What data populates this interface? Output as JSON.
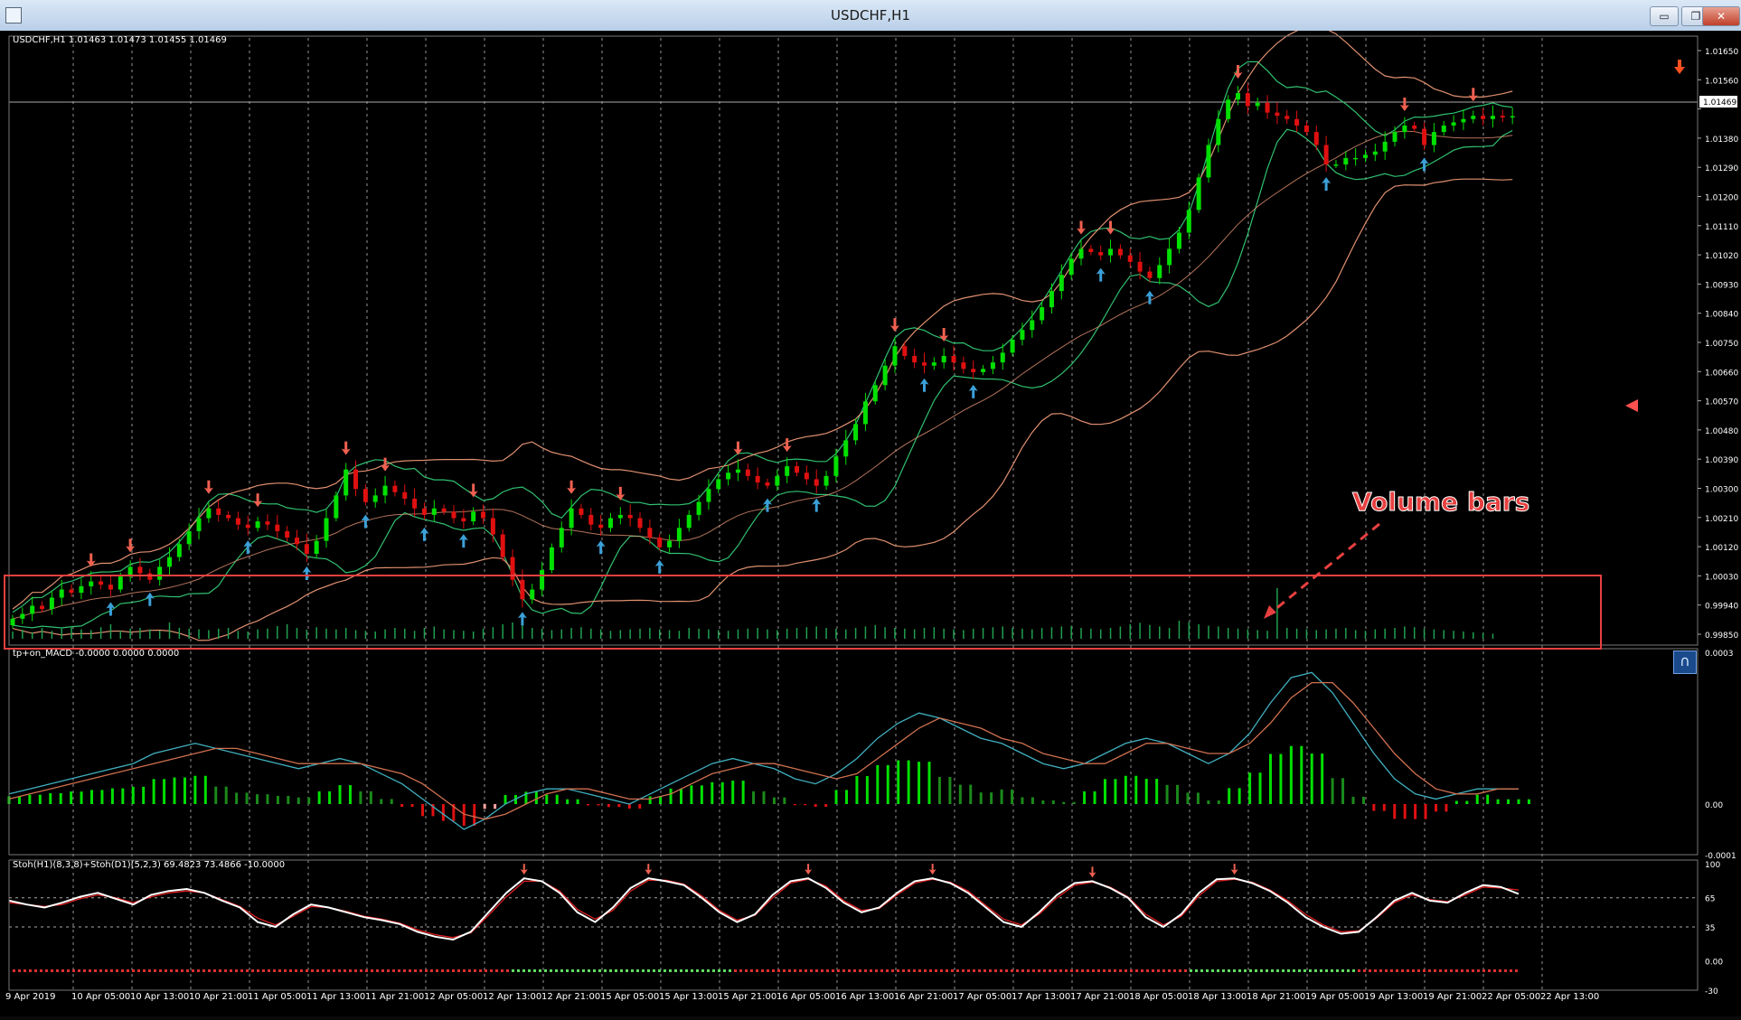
{
  "window": {
    "title": "USDCHF,H1",
    "minimize": "▭",
    "restore": "❐",
    "close": "✕"
  },
  "main_panel": {
    "info_line": "USDCHF,H1  1.01463 1.01473 1.01455 1.01469",
    "price_ticks": [
      "1.01650",
      "1.01560",
      "1.01469",
      "1.01380",
      "1.01290",
      "1.01200",
      "1.01110",
      "1.01020",
      "1.00930",
      "1.00840",
      "1.00750",
      "1.00660",
      "1.00570",
      "1.00480",
      "1.00390",
      "1.00300",
      "1.00210",
      "1.00120",
      "1.00030",
      "0.99940",
      "0.99850"
    ],
    "current_price": "1.01469",
    "annotation": "Volume bars"
  },
  "macd_panel": {
    "label": "tp+on_MACD -0.0000 0.0000 0.0000",
    "ticks": [
      "0.0003",
      "0.00",
      "-0.0001"
    ]
  },
  "stoch_panel": {
    "label": "Stoh(H1)(8,3,8)+Stoh(D1)(5,2,3) 69.4823 73.4866 -10.0000",
    "ticks": [
      "100",
      "65",
      "35",
      "0.00",
      "-30"
    ]
  },
  "time_axis": {
    "labels": [
      "9 Apr 2019",
      "10 Apr 05:00",
      "10 Apr 13:00",
      "10 Apr 21:00",
      "11 Apr 05:00",
      "11 Apr 13:00",
      "11 Apr 21:00",
      "12 Apr 05:00",
      "12 Apr 13:00",
      "12 Apr 21:00",
      "15 Apr 05:00",
      "15 Apr 13:00",
      "15 Apr 21:00",
      "16 Apr 05:00",
      "16 Apr 13:00",
      "16 Apr 21:00",
      "17 Apr 05:00",
      "17 Apr 13:00",
      "17 Apr 21:00",
      "18 Apr 05:00",
      "18 Apr 13:00",
      "18 Apr 21:00",
      "19 Apr 05:00",
      "19 Apr 13:00",
      "19 Apr 21:00",
      "22 Apr 05:00",
      "22 Apr 13:00"
    ]
  },
  "colors": {
    "bull": "#00e000",
    "bear": "#e01010",
    "bollinger_mid": "#30c070",
    "bollinger_outer": "#e09070",
    "macd_line": "#40b0c0",
    "signal_line": "#d07050",
    "annotation": "#e84040",
    "arrow_up": "#3ba0d8",
    "arrow_down": "#f06050"
  },
  "chart_data": [
    {
      "type": "candlestick",
      "ylim": [
        0.9985,
        1.0171
      ],
      "series": [
        {
          "values": [
            0.9992,
            0.99935,
            0.9996,
            0.9995,
            0.99985,
            1.0001,
            1.0,
            1.0002,
            1.00035,
            1.00025,
            1.0001,
            1.0005,
            1.0008,
            1.0006,
            1.0004,
            1.0008,
            1.0011,
            1.0015,
            1.0019,
            1.0023,
            1.0026,
            1.0024,
            1.0023,
            1.0021,
            1.002,
            1.0022,
            1.0021,
            1.0019,
            1.0017,
            1.0015,
            1.0012,
            1.0016,
            1.0023,
            1.003,
            1.0038,
            1.0032,
            1.0028,
            1.003,
            1.0033,
            1.0031,
            1.0029,
            1.0026,
            1.0024,
            1.0026,
            1.0025,
            1.0023,
            1.0022,
            1.0025,
            1.0023,
            1.0018,
            1.0011,
            1.0004,
            0.9998,
            1.0001,
            1.0007,
            1.0014,
            1.002,
            1.0026,
            1.0024,
            1.0021,
            1.002,
            1.0023,
            1.0024,
            1.0023,
            1.002,
            1.0017,
            1.0014,
            1.0016,
            1.002,
            1.0024,
            1.0028,
            1.0032,
            1.0035,
            1.0037,
            1.0038,
            1.0036,
            1.0034,
            1.0033,
            1.0036,
            1.0039,
            1.0037,
            1.0035,
            1.0033,
            1.0036,
            1.0042,
            1.0047,
            1.0052,
            1.0059,
            1.0064,
            1.007,
            1.0076,
            1.0073,
            1.0071,
            1.007,
            1.0071,
            1.0073,
            1.0071,
            1.0069,
            1.0068,
            1.0069,
            1.0071,
            1.0074,
            1.0078,
            1.0081,
            1.0084,
            1.0088,
            1.0093,
            1.0098,
            1.0103,
            1.0106,
            1.0105,
            1.0104,
            1.0106,
            1.0104,
            1.0102,
            1.0099,
            1.0097,
            1.0101,
            1.0106,
            1.0111,
            1.0118,
            1.0128,
            1.0138,
            1.0146,
            1.0152,
            1.0154,
            1.015,
            1.0151,
            1.0148,
            1.0147,
            1.0146,
            1.0144,
            1.0142,
            1.0138,
            1.0132,
            1.0132,
            1.0134,
            1.0134,
            1.0135,
            1.0136,
            1.0139,
            1.0142,
            1.0144,
            1.0143,
            1.0138,
            1.0142,
            1.0144,
            1.0145,
            1.0146,
            1.0147,
            1.0146,
            1.0147,
            1.01465,
            1.01469
          ]
        }
      ]
    },
    {
      "type": "bar",
      "name": "volume",
      "series": [
        {
          "values": [
            20,
            25,
            18,
            30,
            22,
            28,
            35,
            26,
            24,
            32,
            40,
            22,
            28,
            30,
            26,
            22,
            45,
            30,
            28,
            26,
            24,
            28,
            30,
            22,
            20,
            26,
            28,
            35,
            40,
            30,
            25,
            32,
            28,
            26,
            30,
            24,
            22,
            20,
            26,
            30,
            28,
            22,
            30,
            34,
            26,
            24,
            22,
            20,
            28,
            32,
            40,
            45,
            38,
            30,
            28,
            24,
            26,
            30,
            32,
            28,
            26,
            22,
            24,
            26,
            28,
            30,
            26,
            24,
            22,
            30,
            28,
            26,
            24,
            22,
            26,
            28,
            30,
            26,
            24,
            28,
            30,
            32,
            34,
            30,
            28,
            26,
            30,
            34,
            38,
            32,
            30,
            28,
            26,
            30,
            32,
            28,
            26,
            24,
            28,
            30,
            32,
            34,
            30,
            28,
            26,
            30,
            32,
            34,
            36,
            30,
            28,
            26,
            30,
            34,
            40,
            44,
            38,
            34,
            30,
            50,
            46,
            40,
            36,
            34,
            30,
            28,
            26,
            24,
            22,
            140,
            30,
            28,
            26,
            24,
            26,
            28,
            30,
            24,
            22,
            26,
            28,
            30,
            34,
            32,
            28,
            26,
            24,
            22,
            20,
            18,
            16,
            14
          ]
        }
      ]
    },
    {
      "type": "line",
      "name": "macd",
      "ylim": [
        -0.0001,
        0.0003
      ],
      "series": [
        {
          "values": [
            2e-05,
            3e-05,
            4e-05,
            5e-05,
            6e-05,
            7e-05,
            8e-05,
            0.0001,
            0.00011,
            0.00012,
            0.00011,
            0.0001,
            9e-05,
            8e-05,
            7e-05,
            8e-05,
            9e-05,
            8e-05,
            6e-05,
            4e-05,
            1e-05,
            -2e-05,
            -5e-05,
            -3e-05,
            0.0,
            2e-05,
            3e-05,
            3e-05,
            2e-05,
            1e-05,
            0.0,
            2e-05,
            4e-05,
            6e-05,
            8e-05,
            9e-05,
            8e-05,
            7e-05,
            5e-05,
            4e-05,
            6e-05,
            9e-05,
            0.00013,
            0.00016,
            0.00018,
            0.00017,
            0.00015,
            0.00013,
            0.00012,
            0.0001,
            8e-05,
            7e-05,
            8e-05,
            0.0001,
            0.00012,
            0.00013,
            0.00012,
            0.0001,
            8e-05,
            0.0001,
            0.00014,
            0.0002,
            0.00025,
            0.00026,
            0.00022,
            0.00016,
            0.0001,
            5e-05,
            2e-05,
            1e-05,
            2e-05,
            3e-05,
            3e-05,
            3e-05
          ]
        },
        {
          "values": [
            1e-05,
            2e-05,
            3e-05,
            4e-05,
            5e-05,
            6e-05,
            7e-05,
            8e-05,
            9e-05,
            0.0001,
            0.00011,
            0.00011,
            0.0001,
            9e-05,
            8e-05,
            8e-05,
            8e-05,
            8e-05,
            7e-05,
            6e-05,
            4e-05,
            1e-05,
            -2e-05,
            -3e-05,
            -2e-05,
            0.0,
            2e-05,
            3e-05,
            3e-05,
            2e-05,
            1e-05,
            1e-05,
            2e-05,
            4e-05,
            6e-05,
            7e-05,
            8e-05,
            8e-05,
            7e-05,
            6e-05,
            5e-05,
            6e-05,
            9e-05,
            0.00012,
            0.00015,
            0.00017,
            0.00016,
            0.00015,
            0.00013,
            0.00012,
            0.0001,
            9e-05,
            8e-05,
            8e-05,
            0.0001,
            0.00012,
            0.00012,
            0.00011,
            0.0001,
            0.0001,
            0.00012,
            0.00016,
            0.00021,
            0.00024,
            0.00024,
            0.0002,
            0.00015,
            0.0001,
            6e-05,
            3e-05,
            2e-05,
            2e-05,
            3e-05,
            3e-05
          ]
        }
      ]
    },
    {
      "type": "line",
      "name": "stochastic",
      "ylim": [
        -30,
        100
      ],
      "series": [
        {
          "values": [
            62,
            58,
            55,
            60,
            66,
            70,
            64,
            58,
            68,
            72,
            74,
            70,
            62,
            55,
            40,
            35,
            48,
            58,
            55,
            50,
            45,
            42,
            38,
            30,
            25,
            22,
            30,
            50,
            70,
            85,
            82,
            70,
            50,
            40,
            55,
            75,
            85,
            82,
            78,
            65,
            50,
            40,
            48,
            68,
            82,
            85,
            75,
            60,
            50,
            55,
            70,
            82,
            85,
            80,
            70,
            55,
            40,
            35,
            50,
            68,
            80,
            82,
            75,
            65,
            45,
            35,
            48,
            70,
            84,
            85,
            80,
            72,
            60,
            45,
            35,
            28,
            30,
            45,
            62,
            70,
            62,
            60,
            70,
            78,
            76,
            69
          ]
        },
        {
          "values": [
            60,
            58,
            56,
            58,
            64,
            68,
            65,
            60,
            66,
            70,
            72,
            70,
            63,
            56,
            44,
            37,
            46,
            56,
            55,
            51,
            46,
            43,
            39,
            32,
            27,
            24,
            29,
            47,
            66,
            82,
            82,
            72,
            53,
            43,
            52,
            72,
            83,
            83,
            79,
            67,
            52,
            42,
            47,
            65,
            80,
            84,
            77,
            62,
            52,
            54,
            68,
            80,
            84,
            81,
            72,
            57,
            43,
            37,
            48,
            65,
            78,
            81,
            76,
            66,
            48,
            37,
            46,
            67,
            82,
            84,
            81,
            73,
            62,
            48,
            37,
            30,
            31,
            44,
            60,
            68,
            63,
            61,
            68,
            76,
            75,
            73
          ]
        }
      ]
    }
  ]
}
